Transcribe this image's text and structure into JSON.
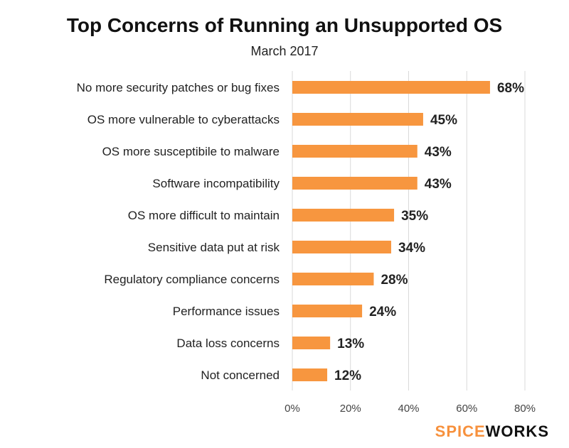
{
  "chart_data": {
    "type": "bar",
    "orientation": "horizontal",
    "title": "Top Concerns of Running an Unsupported OS",
    "subtitle": "March 2017",
    "categories": [
      "No more security patches or bug fixes",
      "OS more vulnerable to cyberattacks",
      "OS more susceptibile to malware",
      "Software incompatibility",
      "OS more difficult to maintain",
      "Sensitive data put at risk",
      "Regulatory compliance concerns",
      "Performance issues",
      "Data loss concerns",
      "Not concerned"
    ],
    "values": [
      68,
      45,
      43,
      43,
      35,
      34,
      28,
      24,
      13,
      12
    ],
    "value_labels": [
      "68%",
      "45%",
      "43%",
      "43%",
      "35%",
      "34%",
      "28%",
      "24%",
      "13%",
      "12%"
    ],
    "xlim": [
      0,
      80
    ],
    "xticks": [
      0,
      20,
      40,
      60,
      80
    ],
    "xtick_labels": [
      "0%",
      "20%",
      "40%",
      "60%",
      "80%"
    ],
    "xlabel": "",
    "ylabel": "",
    "grid": true,
    "bar_color": "#f7963f"
  },
  "logo": {
    "part1": "SPICE",
    "part2": "WORKS"
  }
}
